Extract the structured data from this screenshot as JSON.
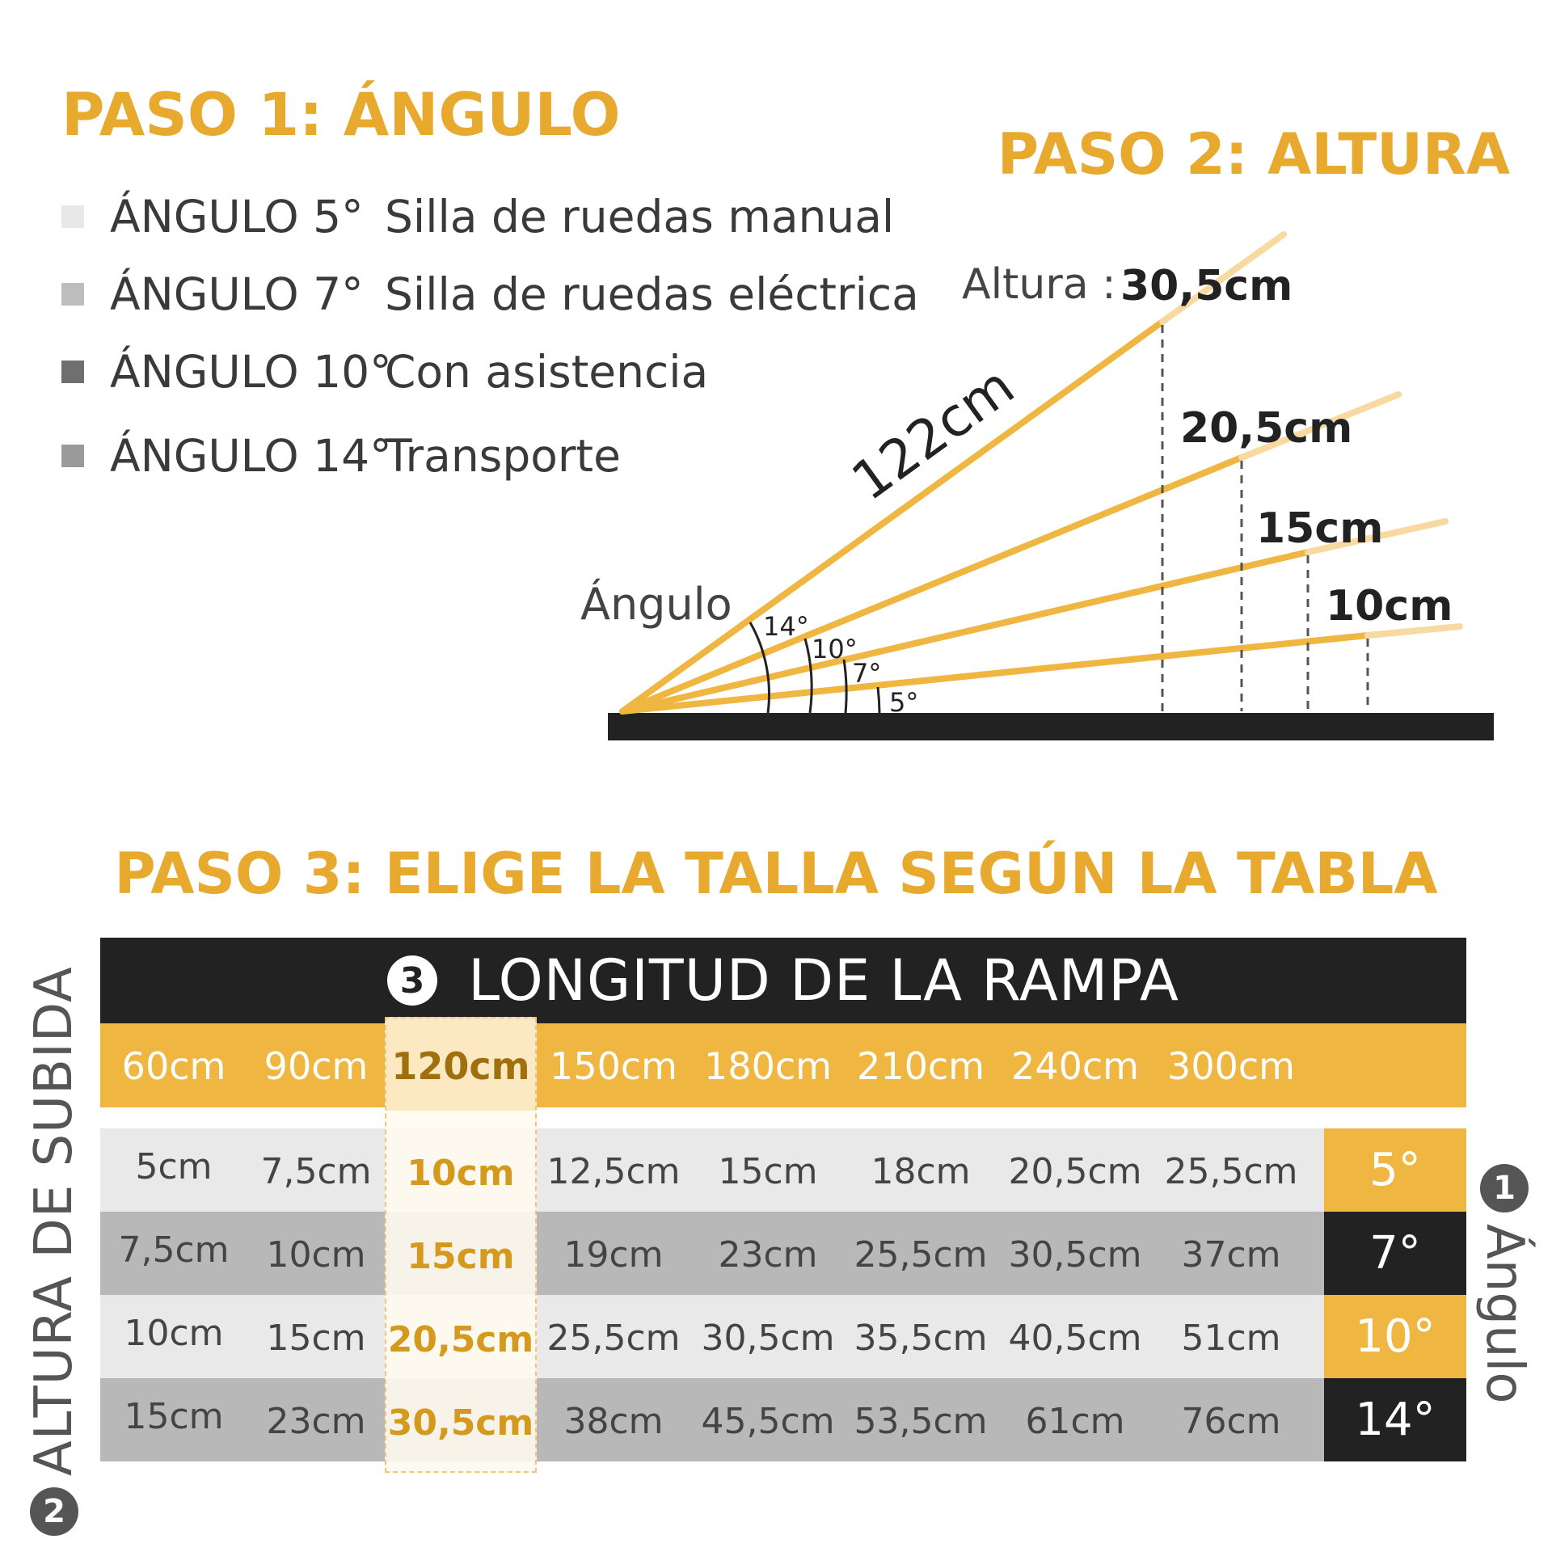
{
  "step1": {
    "title": "PASO 1: ÁNGULO",
    "legend": [
      {
        "angle": "ÁNGULO 5°",
        "use": "Silla de ruedas manual",
        "color": "#E8E8E8"
      },
      {
        "angle": "ÁNGULO 7°",
        "use": "Silla de ruedas eléctrica",
        "color": "#BDBDBD"
      },
      {
        "angle": "ÁNGULO 10°",
        "use": "Con asistencia",
        "color": "#6F6F6F"
      },
      {
        "angle": "ÁNGULO 14°",
        "use": "Transporte",
        "color": "#9A9A9A"
      }
    ]
  },
  "step2": {
    "title": "PASO 2: ALTURA",
    "height_label": "Altura :",
    "ramp_length": "122cm",
    "angle_label": "Ángulo",
    "heights": [
      "30,5cm",
      "20,5cm",
      "15cm",
      "10cm"
    ],
    "angles": [
      "14°",
      "10°",
      "7°",
      "5°"
    ]
  },
  "step3": {
    "title": "PASO 3: ELIGE LA TALLA SEGÚN LA TABLA",
    "header_number": "3",
    "header": "LONGITUD DE LA RAMPA",
    "lengths": [
      "60cm",
      "90cm",
      "120cm",
      "150cm",
      "180cm",
      "210cm",
      "240cm",
      "300cm"
    ],
    "rows": [
      {
        "angle": "5°",
        "values": [
          "5cm",
          "7,5cm",
          "10cm",
          "12,5cm",
          "15cm",
          "18cm",
          "20,5cm",
          "25,5cm"
        ]
      },
      {
        "angle": "7°",
        "values": [
          "7,5cm",
          "10cm",
          "15cm",
          "19cm",
          "23cm",
          "25,5cm",
          "30,5cm",
          "37cm"
        ]
      },
      {
        "angle": "10°",
        "values": [
          "10cm",
          "15cm",
          "20,5cm",
          "25,5cm",
          "30,5cm",
          "35,5cm",
          "40,5cm",
          "51cm"
        ]
      },
      {
        "angle": "14°",
        "values": [
          "15cm",
          "23cm",
          "30,5cm",
          "38cm",
          "45,5cm",
          "53,5cm",
          "61cm",
          "76cm"
        ]
      }
    ],
    "left_number": "2",
    "left_label": "ALTURA DE SUBIDA",
    "right_number": "1",
    "right_label": "Ángulo"
  },
  "colors": {
    "accent": "#EFB742",
    "title": "#E8A92F",
    "dark": "#222222"
  }
}
